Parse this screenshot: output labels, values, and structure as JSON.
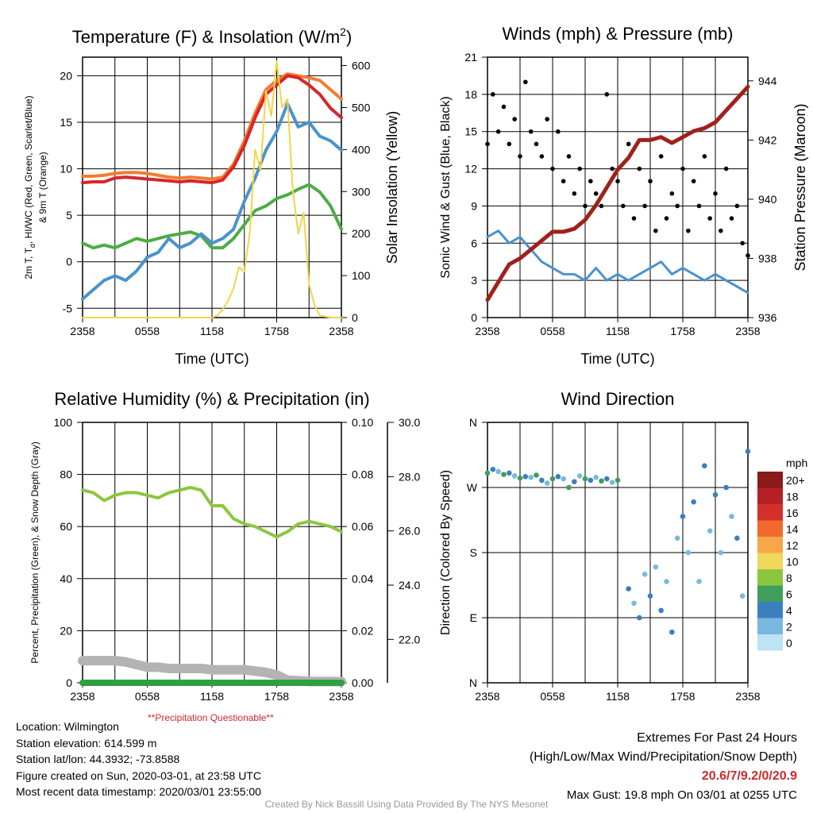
{
  "chart_data": [
    {
      "type": "line",
      "title": "Temperature (F) & Insolation (W/m²)",
      "title_main": "Temperature (F) & Insolation (W/m",
      "title_sup": "2",
      "title_end": ")",
      "xlabel": "Time (UTC)",
      "ylabel_lines": [
        "2m T, T",
        "d",
        ", HI/WC (Red, Green, Scarlet/Blue)",
        "& 9m T (Orange)"
      ],
      "ylabel_left_main": "2m T, T",
      "ylabel_left_sub": "d",
      "ylabel_left_rest": ", HI/WC (Red, Green, Scarlet/Blue)",
      "ylabel_left_line2": "& 9m T (Orange)",
      "ylabel_right": "Solar Insolation (Yellow)",
      "x_ticks": [
        "2358",
        "0558",
        "1158",
        "1758",
        "2358"
      ],
      "y_ticks_left": [
        "-5",
        "0",
        "5",
        "10",
        "15",
        "20"
      ],
      "y_ticks_right": [
        "0",
        "100",
        "200",
        "300",
        "400",
        "500",
        "600"
      ],
      "ylim_left": [
        -6,
        22
      ],
      "ylim_right": [
        0,
        620
      ],
      "grid": true,
      "series": [
        {
          "name": "9m T",
          "color": "#f27c2e",
          "x": [
            0,
            1,
            2,
            3,
            4,
            5,
            6,
            7,
            8,
            9,
            10,
            11,
            12,
            13,
            14,
            15,
            16,
            17,
            18,
            19,
            20,
            21,
            22,
            23,
            24
          ],
          "values": [
            9.2,
            9.2,
            9.3,
            9.5,
            9.6,
            9.6,
            9.5,
            9.3,
            9.1,
            9.0,
            9.1,
            9.0,
            8.9,
            9.1,
            10.5,
            13.0,
            16.0,
            18.5,
            19.5,
            20.2,
            20.0,
            19.8,
            19.5,
            18.5,
            17.5
          ]
        },
        {
          "name": "2m T",
          "color": "#d7262b",
          "x": [
            0,
            1,
            2,
            3,
            4,
            5,
            6,
            7,
            8,
            9,
            10,
            11,
            12,
            13,
            14,
            15,
            16,
            17,
            18,
            19,
            20,
            21,
            22,
            23,
            24
          ],
          "values": [
            8.5,
            8.6,
            8.6,
            9.0,
            9.1,
            9.0,
            8.9,
            8.8,
            8.7,
            8.6,
            8.7,
            8.6,
            8.5,
            8.8,
            10.2,
            12.5,
            15.5,
            18.0,
            19.0,
            20.0,
            19.8,
            19.0,
            18.0,
            16.5,
            15.5
          ]
        },
        {
          "name": "Td",
          "color": "#4bad43",
          "x": [
            0,
            1,
            2,
            3,
            4,
            5,
            6,
            7,
            8,
            9,
            10,
            11,
            12,
            13,
            14,
            15,
            16,
            17,
            18,
            19,
            20,
            21,
            22,
            23,
            24
          ],
          "values": [
            2.0,
            1.5,
            1.8,
            1.5,
            2.0,
            2.5,
            2.2,
            2.5,
            2.8,
            3.0,
            3.2,
            2.8,
            1.5,
            1.5,
            2.5,
            4.0,
            5.5,
            6.0,
            6.8,
            7.2,
            7.8,
            8.3,
            7.5,
            6.0,
            3.5
          ]
        },
        {
          "name": "HI/WC",
          "color": "#4a93cc",
          "x": [
            0,
            1,
            2,
            3,
            4,
            5,
            6,
            7,
            8,
            9,
            10,
            11,
            12,
            13,
            14,
            15,
            16,
            17,
            18,
            19,
            20,
            21,
            22,
            23,
            24
          ],
          "values": [
            -4.0,
            -3.0,
            -2.0,
            -1.5,
            -2.0,
            -1.0,
            0.5,
            1.0,
            2.5,
            1.5,
            2.0,
            3.0,
            2.0,
            2.5,
            3.5,
            6.5,
            9.0,
            12.0,
            14.0,
            17.0,
            14.5,
            15.0,
            13.5,
            13.0,
            12.0
          ]
        },
        {
          "name": "Insolation",
          "color": "#f2d54a",
          "axis": "right",
          "x": [
            0,
            2,
            4,
            6,
            8,
            10,
            11,
            12,
            12.5,
            13,
            13.5,
            14,
            14.5,
            15,
            15.5,
            16,
            16.5,
            17,
            17.5,
            18,
            18.5,
            19,
            19.5,
            20,
            20.5,
            21,
            21.5,
            22,
            23,
            24
          ],
          "values": [
            0,
            0,
            0,
            0,
            0,
            0,
            0,
            0,
            5,
            20,
            40,
            70,
            120,
            110,
            200,
            400,
            350,
            540,
            480,
            610,
            500,
            520,
            300,
            200,
            250,
            80,
            30,
            5,
            0,
            0
          ]
        }
      ]
    },
    {
      "type": "scatter",
      "title": "Winds (mph) & Pressure (mb)",
      "xlabel": "Time (UTC)",
      "ylabel": "Sonic Wind & Gust (Blue, Black)",
      "ylabel_right": "Station Pressure (Maroon)",
      "x_ticks": [
        "2358",
        "0558",
        "1158",
        "1758",
        "2358"
      ],
      "y_ticks_left": [
        "0",
        "3",
        "6",
        "9",
        "12",
        "15",
        "18",
        "21"
      ],
      "y_ticks_right": [
        "936",
        "938",
        "940",
        "942",
        "944"
      ],
      "ylim_left": [
        0,
        21
      ],
      "ylim_right": [
        936,
        944.8
      ],
      "grid": true,
      "series": [
        {
          "name": "Sonic Wind",
          "color": "#4a93cc",
          "x": [
            0,
            1,
            2,
            3,
            4,
            5,
            6,
            7,
            8,
            9,
            10,
            11,
            12,
            13,
            14,
            15,
            16,
            17,
            18,
            19,
            20,
            21,
            22,
            23,
            24
          ],
          "values": [
            6.5,
            7.0,
            6.0,
            6.5,
            5.5,
            4.5,
            4.0,
            3.5,
            3.5,
            3.0,
            4.0,
            3.0,
            3.5,
            3.0,
            3.5,
            4.0,
            4.5,
            3.5,
            4.0,
            3.5,
            3.0,
            3.5,
            3.0,
            2.5,
            2.0
          ]
        },
        {
          "name": "Gust",
          "color": "#000000",
          "x": [
            0,
            0.5,
            1,
            1.5,
            2,
            2.5,
            3,
            3.5,
            4,
            4.5,
            5,
            5.5,
            6,
            6.5,
            7,
            7.5,
            8,
            8.5,
            9,
            9.5,
            10,
            10.5,
            11,
            11.5,
            12,
            12.5,
            13,
            13.5,
            14,
            14.5,
            15,
            15.5,
            16,
            16.5,
            17,
            17.5,
            18,
            18.5,
            19,
            19.5,
            20,
            20.5,
            21,
            21.5,
            22,
            22.5,
            23,
            23.5,
            24
          ],
          "values": [
            14,
            18,
            15,
            17,
            14,
            16,
            13,
            19,
            15,
            14,
            13,
            16,
            12,
            15,
            11,
            13,
            10,
            12,
            9,
            11,
            10,
            9,
            18,
            12,
            11,
            9,
            14,
            8,
            12,
            9,
            11,
            7,
            13,
            8,
            10,
            9,
            12,
            7,
            11,
            9,
            13,
            8,
            10,
            7,
            12,
            8,
            9,
            6,
            5
          ]
        },
        {
          "name": "Pressure",
          "color": "#a0211b",
          "axis": "right",
          "x": [
            0,
            1,
            2,
            3,
            4,
            5,
            6,
            7,
            8,
            9,
            10,
            11,
            12,
            13,
            14,
            15,
            16,
            17,
            18,
            19,
            20,
            21,
            22,
            23,
            24
          ],
          "values": [
            936.6,
            937.2,
            937.8,
            938.0,
            938.3,
            938.6,
            938.9,
            938.9,
            939.0,
            939.3,
            939.8,
            940.4,
            941.0,
            941.4,
            942.0,
            942.0,
            942.1,
            941.9,
            942.1,
            942.3,
            942.4,
            942.6,
            943.0,
            943.4,
            943.8
          ]
        }
      ]
    },
    {
      "type": "line",
      "title": "Relative Humidity (%) & Precipitation (in)",
      "xlabel": "",
      "ylabel": "Percent, Precipitation (Green), & Snow Depth (Gray)",
      "x_ticks": [
        "2358",
        "0558",
        "1158",
        "1758",
        "2358"
      ],
      "y_ticks_left": [
        "0",
        "20",
        "40",
        "60",
        "80",
        "100"
      ],
      "y_ticks_right": [
        "0.00",
        "0.02",
        "0.04",
        "0.06",
        "0.08",
        "0.10"
      ],
      "y_ticks_far_right": [
        "22.0",
        "24.0",
        "26.0",
        "28.0",
        "30.0"
      ],
      "ylim_left": [
        0,
        100
      ],
      "grid": true,
      "note": "**Precipitation Questionable**",
      "series": [
        {
          "name": "RH",
          "color": "#8cc63f",
          "x": [
            0,
            1,
            2,
            3,
            4,
            5,
            6,
            7,
            8,
            9,
            10,
            11,
            12,
            13,
            14,
            15,
            16,
            17,
            18,
            19,
            20,
            21,
            22,
            23,
            24
          ],
          "values": [
            74,
            73,
            70,
            72,
            73,
            73,
            72,
            71,
            73,
            74,
            75,
            74,
            68,
            68,
            63,
            61,
            60,
            58,
            56,
            58,
            61,
            62,
            61,
            60,
            58
          ]
        },
        {
          "name": "Precipitation",
          "color": "#2ea043",
          "x": [
            0,
            24
          ],
          "values": [
            0,
            0
          ]
        },
        {
          "name": "Snow Depth",
          "color": "#b3b3b3",
          "x": [
            0,
            1,
            2,
            3,
            4,
            5,
            6,
            7,
            8,
            9,
            10,
            11,
            12,
            13,
            14,
            15,
            16,
            17,
            18,
            19,
            20,
            21,
            22,
            23,
            24
          ],
          "values": [
            8.5,
            8.5,
            8.5,
            8.5,
            8,
            7,
            6,
            6,
            5.5,
            5.5,
            5.5,
            5.5,
            5,
            5,
            5,
            5,
            4.5,
            4,
            3,
            1,
            0.8,
            0.5,
            0.5,
            0.5,
            0.5
          ]
        }
      ]
    },
    {
      "type": "scatter",
      "title": "Wind Direction",
      "xlabel": "",
      "ylabel": "Direction (Colored By Speed)",
      "x_ticks": [
        "2358",
        "0558",
        "1158",
        "1758",
        "2358"
      ],
      "y_ticks_left": [
        "N",
        "E",
        "S",
        "W",
        "N"
      ],
      "ylim_left": [
        0,
        360
      ],
      "grid": true,
      "colorbar_title": "mph",
      "colorbar_labels": [
        "20+",
        "18",
        "16",
        "14",
        "12",
        "10",
        "8",
        "6",
        "4",
        "2",
        "0"
      ],
      "colorbar_colors": [
        "#8b1a1a",
        "#b52025",
        "#d3302b",
        "#ef6a2c",
        "#f7a64a",
        "#f0d85a",
        "#8cc63f",
        "#3f9e5a",
        "#3b7fbf",
        "#7ab8e0",
        "#bde3f5"
      ],
      "series": [
        {
          "name": "Direction",
          "x": [
            0,
            0.5,
            1,
            1.5,
            2,
            2.5,
            3,
            3.5,
            4,
            4.5,
            5,
            5.5,
            6,
            6.5,
            7,
            7.5,
            8,
            8.5,
            9,
            9.5,
            10,
            10.5,
            11,
            11.5,
            12,
            13,
            13.5,
            14,
            14.5,
            15,
            15.5,
            16,
            16.5,
            17,
            17.5,
            18,
            18.5,
            19,
            19.5,
            20,
            20.5,
            21,
            21.5,
            22,
            22.5,
            23,
            23.5,
            24
          ],
          "values": [
            290,
            295,
            292,
            288,
            290,
            286,
            283,
            285,
            284,
            287,
            280,
            276,
            282,
            285,
            282,
            270,
            278,
            286,
            282,
            280,
            284,
            279,
            282,
            277,
            280,
            130,
            110,
            90,
            150,
            120,
            160,
            100,
            140,
            70,
            200,
            230,
            180,
            250,
            140,
            300,
            210,
            260,
            180,
            270,
            230,
            200,
            120,
            320
          ]
        }
      ]
    }
  ],
  "footer": {
    "location": "Location: Wilmington",
    "elevation": "Station elevation: 614.599 m",
    "latlon": "Station lat/lon: 44.3932; -73.8588",
    "created": "Figure created on Sun, 2020-03-01, at 23:58 UTC",
    "recent": "Most recent data timestamp: 2020/03/01 23:55:00",
    "extremes_title": "Extremes For Past 24 Hours",
    "extremes_legend": "(High/Low/Max Wind/Precipitation/Snow Depth)",
    "extremes_values": "20.6/7/9.2/0/20.9",
    "max_gust": "Max Gust: 19.8 mph On 03/01 at 0255 UTC",
    "credit": "Created By Nick Bassill Using Data Provided By The NYS Mesonet"
  }
}
